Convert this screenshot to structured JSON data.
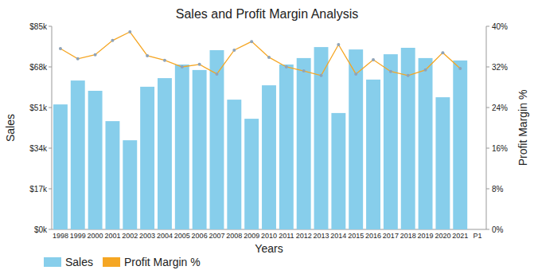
{
  "chart_data": {
    "type": "bar",
    "title": "Sales and Profit Margin Analysis",
    "x_label": "Years",
    "y_label": "Sales",
    "y2_label": "Profit Margin %",
    "categories": [
      "1998",
      "1999",
      "2000",
      "2001",
      "2002",
      "2003",
      "2004",
      "2005",
      "2006",
      "2007",
      "2008",
      "2009",
      "2010",
      "2011",
      "2012",
      "2013",
      "2014",
      "2015",
      "2016",
      "2017",
      "2018",
      "2019",
      "2020",
      "2021",
      "P1"
    ],
    "series": [
      {
        "name": "Sales",
        "type": "bar",
        "color": "#87ceeb",
        "values": [
          52300,
          62300,
          58000,
          45300,
          37300,
          59700,
          63300,
          69000,
          66700,
          75000,
          54300,
          46300,
          60300,
          69000,
          71700,
          76300,
          48700,
          75300,
          62700,
          73300,
          76000,
          71700,
          55300,
          70700,
          null
        ]
      },
      {
        "name": "Profit Margin %",
        "type": "line",
        "axis": "y2",
        "color": "#f5a623",
        "marker": "circle",
        "values": [
          35.6,
          33.6,
          34.4,
          37.2,
          38.9,
          34.2,
          33.3,
          32.0,
          32.5,
          30.6,
          35.3,
          37.0,
          33.9,
          32.0,
          31.2,
          30.3,
          36.4,
          30.6,
          33.4,
          31.1,
          30.3,
          31.4,
          34.8,
          31.7,
          null
        ]
      }
    ],
    "ylim": [
      0,
      85000
    ],
    "yticks": [
      {
        "value": 0,
        "label": "$0k"
      },
      {
        "value": 17000,
        "label": "$17k"
      },
      {
        "value": 34000,
        "label": "$34k"
      },
      {
        "value": 51000,
        "label": "$51k"
      },
      {
        "value": 68000,
        "label": "$68k"
      },
      {
        "value": 85000,
        "label": "$85k"
      }
    ],
    "y2lim": [
      0,
      40
    ],
    "y2ticks": [
      {
        "value": 0,
        "label": "0%"
      },
      {
        "value": 8,
        "label": "8%"
      },
      {
        "value": 16,
        "label": "16%"
      },
      {
        "value": 24,
        "label": "24%"
      },
      {
        "value": 32,
        "label": "32%"
      },
      {
        "value": 40,
        "label": "40%"
      }
    ],
    "grid": false,
    "legend": "bottom-left"
  }
}
